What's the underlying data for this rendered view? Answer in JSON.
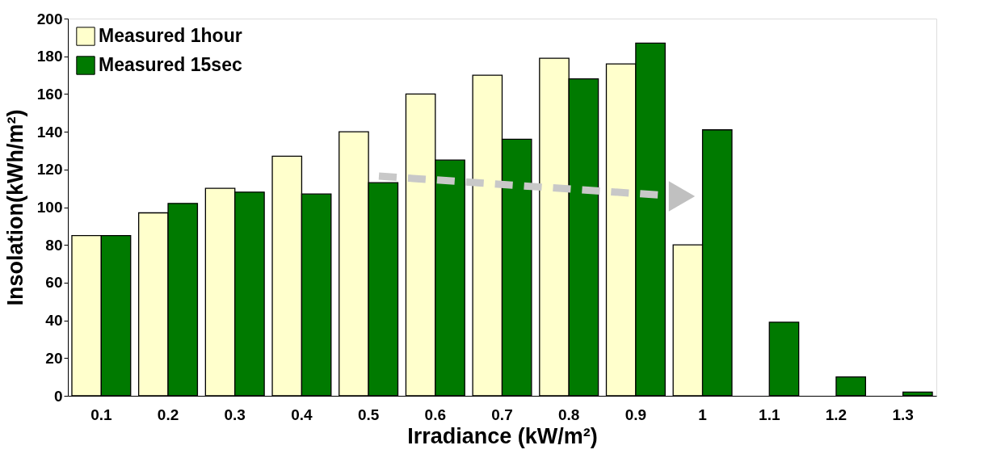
{
  "chart_data": {
    "type": "bar",
    "xlabel": "Irradiance (kW/m²)",
    "ylabel": "Insolation(kWh/m²)",
    "categories": [
      "0.1",
      "0.2",
      "0.3",
      "0.4",
      "0.5",
      "0.6",
      "0.7",
      "0.8",
      "0.9",
      "1",
      "1.1",
      "1.2",
      "1.3"
    ],
    "series": [
      {
        "name": "Measured 1hour",
        "color": "#ffffcc",
        "values": [
          85,
          97,
          110,
          127,
          140,
          160,
          170,
          179,
          176,
          80,
          null,
          null,
          null
        ]
      },
      {
        "name": "Measured 15sec",
        "color": "#007a00",
        "values": [
          85,
          102,
          108,
          107,
          113,
          125,
          136,
          168,
          187,
          141,
          39,
          10,
          2
        ]
      }
    ],
    "ylim": [
      0,
      200
    ],
    "yticks": [
      0,
      20,
      40,
      60,
      80,
      100,
      120,
      140,
      160,
      180,
      200
    ],
    "grid": false,
    "legend": "top left"
  }
}
